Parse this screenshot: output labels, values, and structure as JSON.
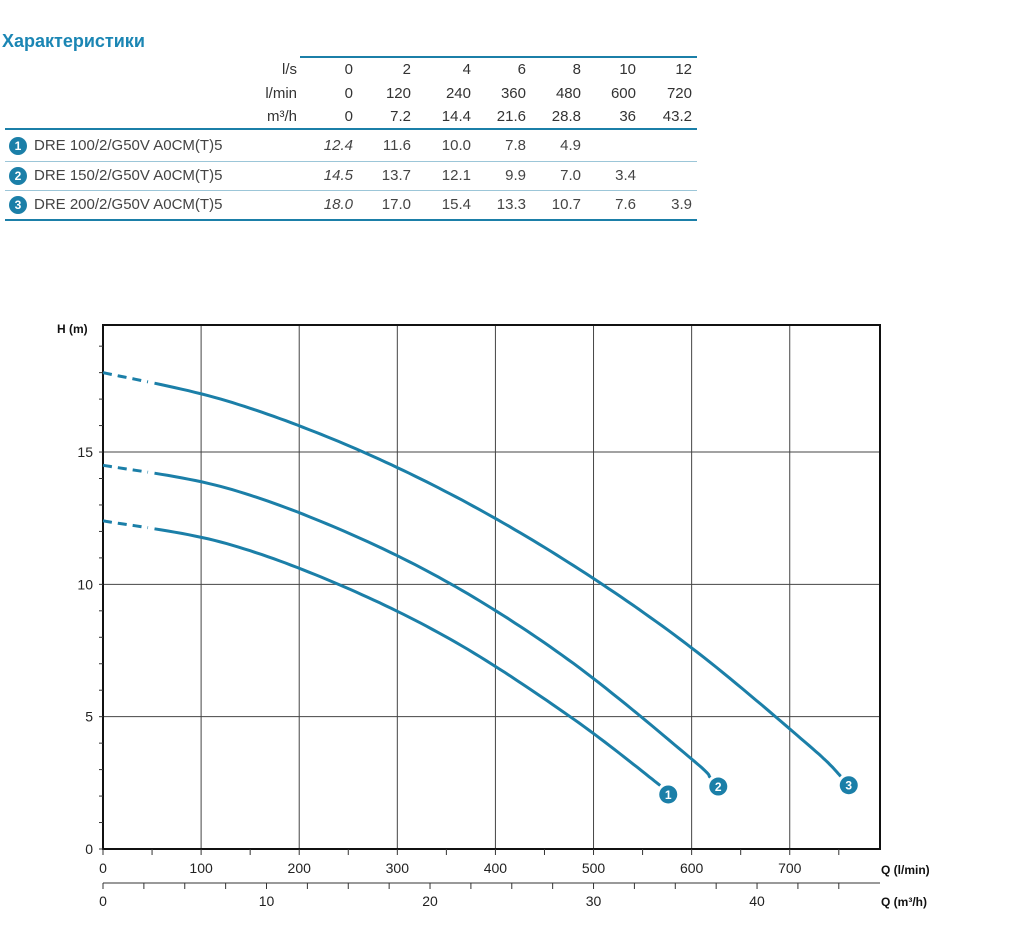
{
  "title": "Характеристики",
  "table": {
    "header_labels": [
      "l/s",
      "l/min",
      "m³/h"
    ],
    "header_rows": [
      [
        "0",
        "2",
        "4",
        "6",
        "8",
        "10",
        "12"
      ],
      [
        "0",
        "120",
        "240",
        "360",
        "480",
        "600",
        "720"
      ],
      [
        "0",
        "7.2",
        "14.4",
        "21.6",
        "28.8",
        "36",
        "43.2"
      ]
    ],
    "rows": [
      {
        "badge": "1",
        "model": "DRE 100/2/G50V A0CM(T)5",
        "values": [
          "12.4",
          "11.6",
          "10.0",
          "7.8",
          "4.9",
          "",
          ""
        ]
      },
      {
        "badge": "2",
        "model": "DRE 150/2/G50V A0CM(T)5",
        "values": [
          "14.5",
          "13.7",
          "12.1",
          "9.9",
          "7.0",
          "3.4",
          ""
        ]
      },
      {
        "badge": "3",
        "model": "DRE 200/2/G50V A0CM(T)5",
        "values": [
          "18.0",
          "17.0",
          "15.4",
          "13.3",
          "10.7",
          "7.6",
          "3.9"
        ]
      }
    ]
  },
  "chart_data": {
    "type": "line",
    "ylabel": "H (m)",
    "xlabel": "Q (l/min)",
    "x2label": "Q (m³/h)",
    "xlim": [
      0,
      792
    ],
    "ylim": [
      0,
      19.8
    ],
    "xticks": [
      0,
      100,
      200,
      300,
      400,
      500,
      600,
      700
    ],
    "x2ticks": [
      0,
      10,
      20,
      30,
      40
    ],
    "yticks": [
      0,
      5,
      10,
      15
    ],
    "grid": true,
    "color": "#1b7fa8",
    "dashed_until_x": 50,
    "series": [
      {
        "label": "1",
        "x": [
          0,
          120,
          240,
          360,
          480,
          568
        ],
        "y": [
          12.4,
          11.6,
          10.0,
          7.8,
          4.9,
          2.4
        ]
      },
      {
        "label": "2",
        "x": [
          0,
          120,
          240,
          360,
          480,
          600,
          619
        ],
        "y": [
          14.5,
          13.7,
          12.1,
          9.9,
          7.0,
          3.4,
          2.7
        ]
      },
      {
        "label": "3",
        "x": [
          0,
          120,
          240,
          360,
          480,
          600,
          720,
          752
        ],
        "y": [
          18.0,
          17.0,
          15.4,
          13.3,
          10.7,
          7.6,
          3.9,
          2.75
        ]
      }
    ]
  }
}
